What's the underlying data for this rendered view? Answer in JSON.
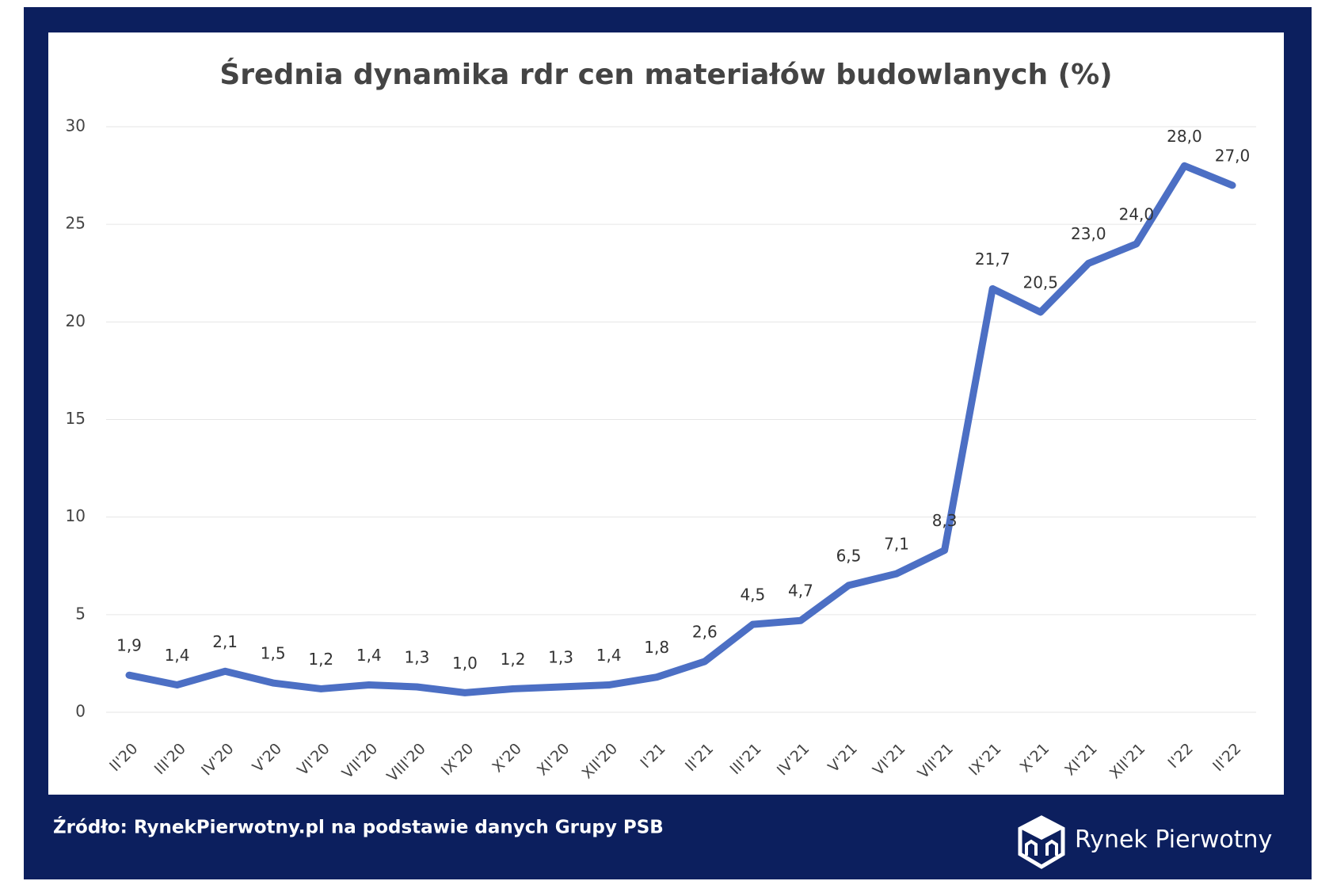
{
  "chart_data": {
    "type": "line",
    "title": "Średnia dynamika rdr cen materiałów budowlanych (%)",
    "categories": [
      "II'20",
      "III'20",
      "IV'20",
      "V'20",
      "VI'20",
      "VII'20",
      "VIII'20",
      "IX'20",
      "X'20",
      "XI'20",
      "XII'20",
      "I'21",
      "II'21",
      "III'21",
      "IV'21",
      "V'21",
      "VI'21",
      "VII'21",
      "IX'21",
      "X'21",
      "XI'21",
      "XII'21",
      "I'22",
      "II'22"
    ],
    "values": [
      1.9,
      1.4,
      2.1,
      1.5,
      1.2,
      1.4,
      1.3,
      1.0,
      1.2,
      1.3,
      1.4,
      1.8,
      2.6,
      4.5,
      4.7,
      6.5,
      7.1,
      8.3,
      21.7,
      20.5,
      23.0,
      24.0,
      28.0,
      27.0
    ],
    "value_labels": [
      "1,9",
      "1,4",
      "2,1",
      "1,5",
      "1,2",
      "1,4",
      "1,3",
      "1,0",
      "1,2",
      "1,3",
      "1,4",
      "1,8",
      "2,6",
      "4,5",
      "4,7",
      "6,5",
      "7,1",
      "8,3",
      "21,7",
      "20,5",
      "23,0",
      "24,0",
      "28,0",
      "27,0"
    ],
    "color": "#4c6fc4",
    "ylim": [
      0,
      30
    ],
    "yticks": [
      0,
      5,
      10,
      15,
      20,
      25,
      30
    ],
    "grid": true,
    "source": "Źródło: RynekPierwotny.pl na podstawie danych Grupy PSB",
    "brand": "Rynek Pierwotny"
  }
}
